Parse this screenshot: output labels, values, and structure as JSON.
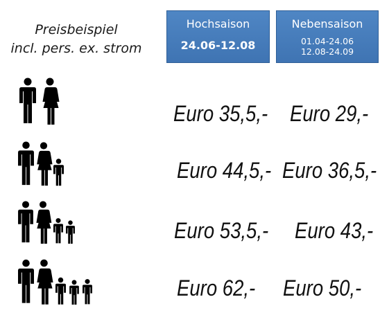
{
  "caption": {
    "line1": "Preisbeispiel",
    "line2": "incl. pers. ex. strom"
  },
  "seasons": {
    "high": {
      "title": "Hochsaison",
      "dates": "24.06-12.08"
    },
    "low": {
      "title": "Nebensaison",
      "range1": "01.04-24.06",
      "range2": "12.08-24.09"
    }
  },
  "rows": [
    {
      "icon": "two-adults-icon",
      "high": "Euro 35,5,-",
      "low": "Euro 29,-"
    },
    {
      "icon": "two-adults-one-child-icon",
      "high": "Euro 44,5,-",
      "low": "Euro 36,5,-"
    },
    {
      "icon": "two-adults-two-children-icon",
      "high": "Euro 53,5,-",
      "low": "Euro 43,-"
    },
    {
      "icon": "two-adults-three-children-icon",
      "high": "Euro 62,-",
      "low": "Euro 50,-"
    }
  ],
  "colors": {
    "header_box": "#4a80c0",
    "text": "#111111"
  }
}
